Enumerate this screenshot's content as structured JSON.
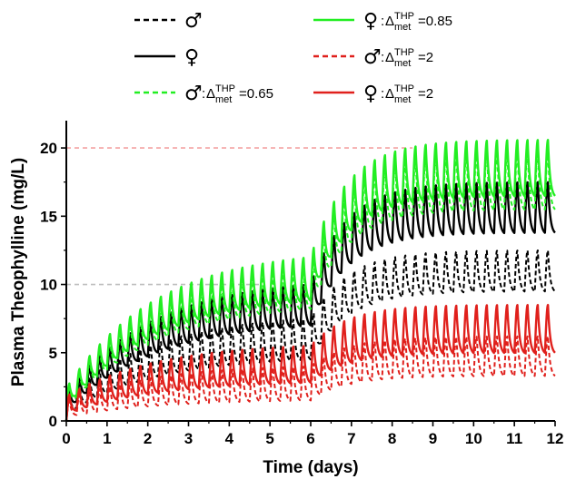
{
  "chart_data": {
    "type": "line",
    "title": "",
    "xlabel": "Time (days)",
    "ylabel": "Plasma Theophylline (mg/L)",
    "xlim": [
      0,
      12
    ],
    "ylim": [
      0,
      22
    ],
    "xticks": [
      "0",
      "1",
      "2",
      "3",
      "4",
      "5",
      "6",
      "7",
      "8",
      "9",
      "10",
      "11",
      "12"
    ],
    "yticks": [
      "0",
      "5",
      "10",
      "15",
      "20"
    ],
    "grid": false,
    "legend_position": "top",
    "dosing_interval_days": 0.25,
    "dose_change_day": 6,
    "reference_lines": [
      {
        "y": 10,
        "color": "#bdbdbd",
        "x_end": 4.8
      },
      {
        "y": 20,
        "color": "#f4a0a0",
        "x_end": 8.5
      }
    ],
    "series": [
      {
        "name": "♂",
        "color": "#000000",
        "dash": true,
        "phase1": {
          "trough_start": 0.5,
          "trough_end": 4.5,
          "peak_start": 1.8,
          "peak_end": 7.5
        },
        "phase2": {
          "trough_ss": 9.5,
          "peak_ss": 12.5
        }
      },
      {
        "name": "♀",
        "color": "#000000",
        "dash": false,
        "phase1": {
          "trough_start": 0.7,
          "trough_end": 7.0,
          "peak_start": 2.1,
          "peak_end": 10.0
        },
        "phase2": {
          "trough_ss": 13.8,
          "peak_ss": 17.5
        }
      },
      {
        "name": "♂:Δ_met^THP=0.65",
        "legend_symbol": "♂",
        "legend_text": "Δ",
        "legend_sub": "met",
        "legend_sup": "THP",
        "legend_value": "=0.65",
        "color": "#22ee22",
        "dash": true,
        "phase1": {
          "trough_start": 0.9,
          "trough_end": 8.2,
          "peak_start": 2.3,
          "peak_end": 11.0
        },
        "phase2": {
          "trough_ss": 15.5,
          "peak_ss": 19.8
        }
      },
      {
        "name": "♀:Δ_met^THP=0.85",
        "legend_symbol": "♀",
        "legend_text": "Δ",
        "legend_sub": "met",
        "legend_sup": "THP",
        "legend_value": "=0.85",
        "color": "#22ee22",
        "dash": false,
        "phase1": {
          "trough_start": 1.0,
          "trough_end": 8.8,
          "peak_start": 2.4,
          "peak_end": 12.0
        },
        "phase2": {
          "trough_ss": 16.5,
          "peak_ss": 20.6
        }
      },
      {
        "name": "♂:Δ_met^THP=2",
        "legend_symbol": "♂",
        "legend_text": "Δ",
        "legend_sub": "met",
        "legend_sup": "THP",
        "legend_value": "=2",
        "color": "#e0201c",
        "dash": true,
        "phase1": {
          "trough_start": 0.3,
          "trough_end": 1.5,
          "peak_start": 1.5,
          "peak_end": 4.0
        },
        "phase2": {
          "trough_ss": 3.3,
          "peak_ss": 6.2
        }
      },
      {
        "name": "♀:Δ_met^THP=2",
        "legend_symbol": "♀",
        "legend_text": "Δ",
        "legend_sub": "met",
        "legend_sup": "THP",
        "legend_value": "=2",
        "color": "#e0201c",
        "dash": false,
        "phase1": {
          "trough_start": 0.5,
          "trough_end": 2.8,
          "peak_start": 1.8,
          "peak_end": 5.5
        },
        "phase2": {
          "trough_ss": 5.0,
          "peak_ss": 8.5
        }
      }
    ]
  }
}
